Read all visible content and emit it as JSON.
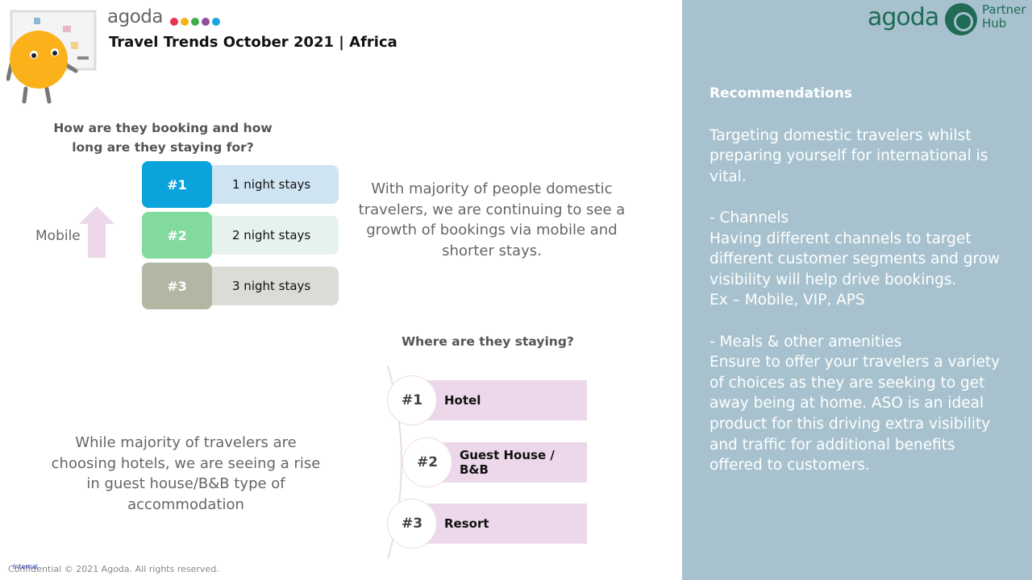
{
  "header": {
    "logo_word": "agoda",
    "logo_dot_colors": [
      "#e8344e",
      "#f6b21b",
      "#3fae49",
      "#8e4e9d",
      "#1aa5e0"
    ],
    "title": "Travel Trends October 2021 | Africa"
  },
  "partner_logo": {
    "word": "agoda",
    "line1": "Partner",
    "line2": "Hub"
  },
  "booking": {
    "question": "How are they booking and how long are they staying for?",
    "channel_label": "Mobile",
    "ranks": [
      {
        "rank": "#1",
        "label": "1 night stays",
        "badge_color": "#0ba3dc",
        "bar_color": "#cfe4f2"
      },
      {
        "rank": "#2",
        "label": "2 night stays",
        "badge_color": "#82da9e",
        "bar_color": "#e6f2ec"
      },
      {
        "rank": "#3",
        "label": "3 night stays",
        "badge_color": "#b1b7a2",
        "bar_color": "#dadcd6"
      }
    ],
    "description": "With majority of people domestic travelers, we are continuing to see a growth of bookings via mobile and shorter stays."
  },
  "staying": {
    "question": "Where are they staying?",
    "ranks": [
      {
        "rank": "#1",
        "label": "Hotel"
      },
      {
        "rank": "#2",
        "label": "Guest House / B&B"
      },
      {
        "rank": "#3",
        "label": "Resort"
      }
    ],
    "description": "While majority of travelers are choosing hotels, we are seeing a rise in guest house/B&B type of accommodation"
  },
  "recommendations": {
    "title": "Recommendations",
    "intro": "Targeting domestic travelers whilst preparing yourself for international is vital.",
    "channels_heading": "-    Channels",
    "channels_text": "Having different channels to target different customer segments and grow visibility will help drive bookings.\nEx – Mobile, VIP, APS",
    "meals_heading": "-    Meals & other amenities",
    "meals_text": "Ensure to offer your travelers a variety of choices as they are seeking to get away being at home. ASO is an ideal product for this driving extra visibility and traffic for additional benefits offered to customers."
  },
  "footer": {
    "copyright": "Confidential © 2021 Agoda. All rights reserved.",
    "label": "Internal"
  }
}
